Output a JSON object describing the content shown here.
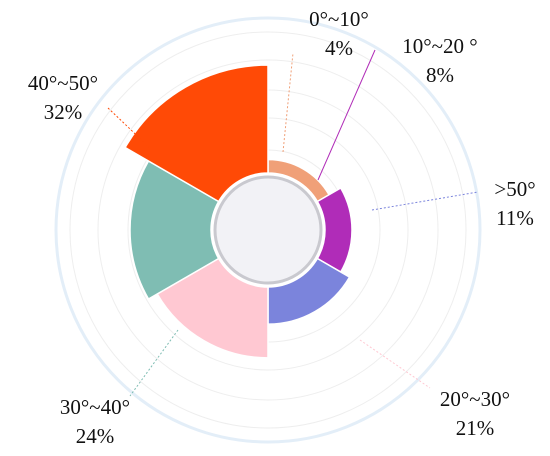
{
  "chart_data": {
    "type": "pie",
    "variant": "nightingale-rose-donut",
    "title": "",
    "categories": [
      "0°~10°",
      "10°~20 °",
      ">50°",
      "20°~30°",
      "30°~40°",
      "40°~50°"
    ],
    "values": [
      4,
      8,
      11,
      21,
      24,
      32
    ],
    "labels": [
      "4%",
      "8%",
      "11%",
      "21%",
      "24%",
      "32%"
    ],
    "colors": [
      "#F0A078",
      "#B02CB8",
      "#7B84DC",
      "#FFC8D2",
      "#7FBDB3",
      "#FF4A06"
    ],
    "legend": "none"
  }
}
